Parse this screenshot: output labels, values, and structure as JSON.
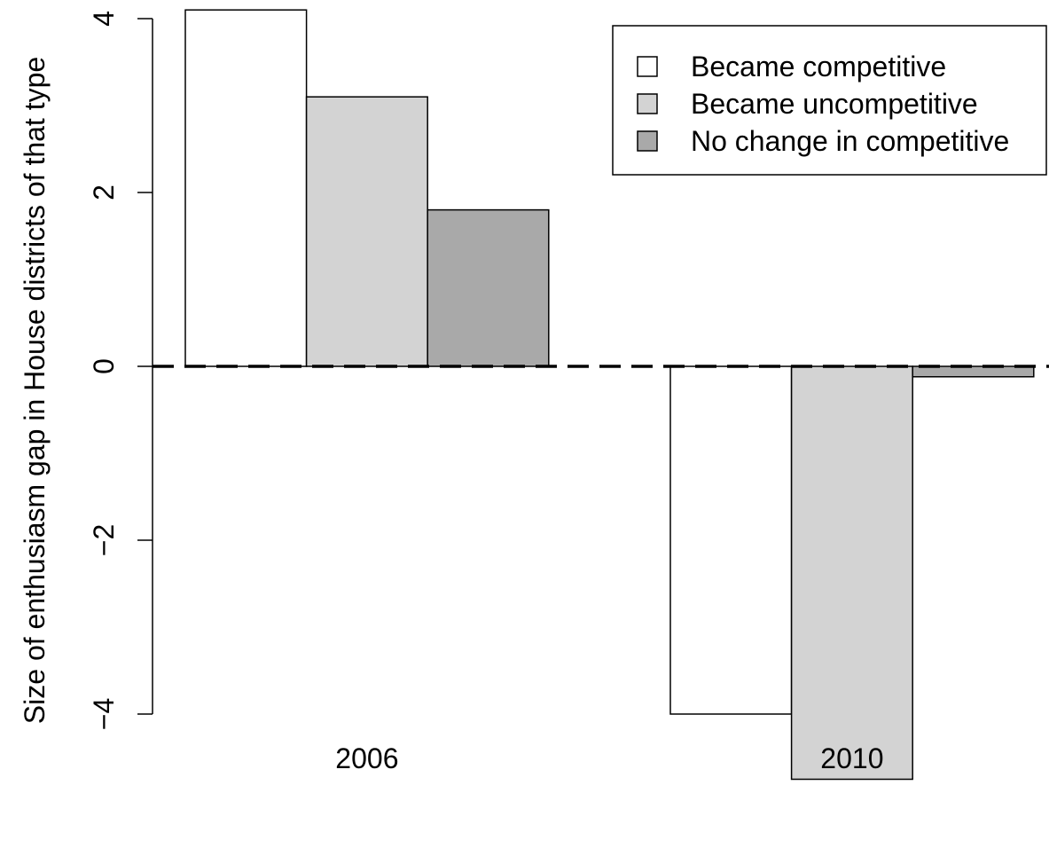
{
  "chart_data": {
    "type": "bar",
    "categories": [
      "2006",
      "2010"
    ],
    "series": [
      {
        "name": "Became competitive",
        "values": [
          4.1,
          -4.0
        ],
        "color": "#ffffff"
      },
      {
        "name": "Became uncompetitive",
        "values": [
          3.1,
          -4.75
        ],
        "color": "#d3d3d3"
      },
      {
        "name": "No change in competitive",
        "values": [
          1.8,
          -0.12
        ],
        "color": "#a9a9a9"
      }
    ],
    "ylabel": "Size of enthusiasm gap in House districts of that type",
    "yticks": [
      -4,
      -2,
      0,
      2,
      4
    ],
    "ytick_labels": [
      "−4",
      "−2",
      "0",
      "2",
      "4"
    ],
    "reference_line": {
      "y": 0,
      "style": "dashed"
    },
    "legend_position": "top-right",
    "grid": false
  }
}
